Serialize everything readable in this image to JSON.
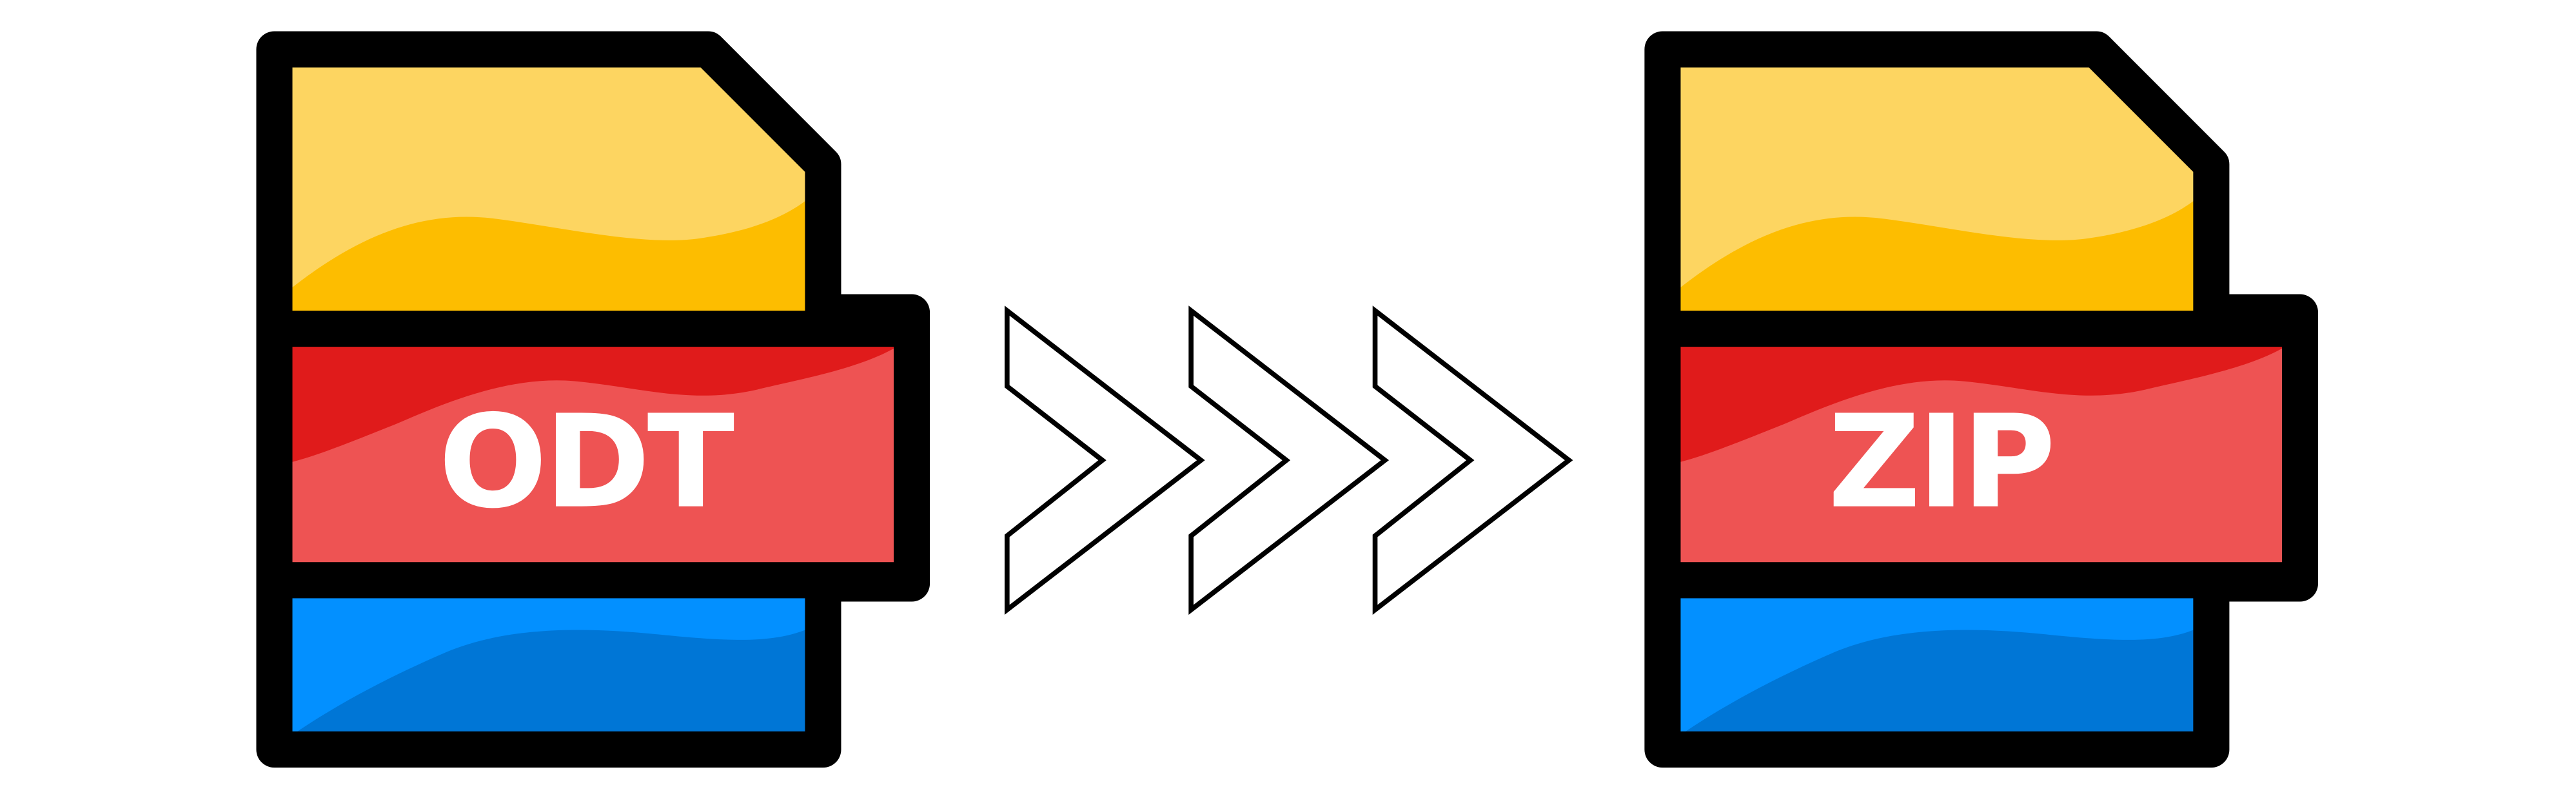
{
  "source_file": {
    "label": "ODT"
  },
  "target_file": {
    "label": "ZIP"
  },
  "arrows": {
    "count": 3,
    "icon": "chevron-right-icon"
  },
  "colors": {
    "outline": "#000000",
    "top_light": "#FDD561",
    "top_dark": "#FDBD00",
    "middle_light": "#EE5353",
    "middle_dark": "#E01B1B",
    "bottom_light": "#0390FF",
    "bottom_dark": "#0076D6",
    "label": "#FFFFFF"
  }
}
